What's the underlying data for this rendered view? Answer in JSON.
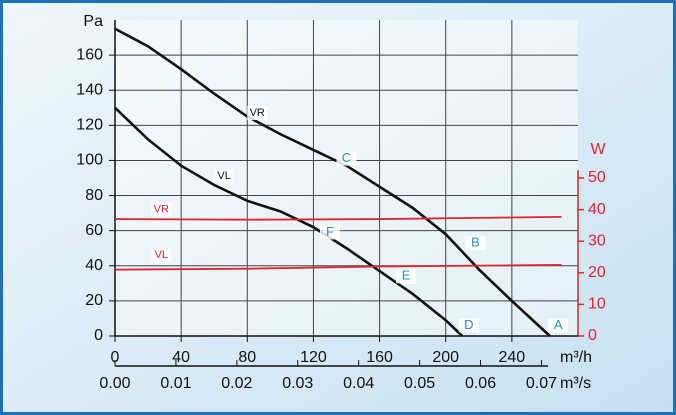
{
  "chart_data": {
    "type": "line",
    "x_label": "m³/h",
    "y_label": "Pa",
    "y2_label": "W",
    "x2_label": "m³/s",
    "xlim": [
      0,
      280
    ],
    "xticks": [
      0,
      40,
      80,
      120,
      160,
      200,
      240
    ],
    "ylim": [
      0,
      180
    ],
    "yticks": [
      0,
      20,
      40,
      60,
      80,
      100,
      120,
      140,
      160
    ],
    "y2lim": [
      0,
      100
    ],
    "y2ticks": [
      0,
      10,
      20,
      30,
      40,
      50
    ],
    "y2color": "#e0262b",
    "x2lim": [
      0,
      0.076
    ],
    "x2ticks": [
      {
        "value": 0,
        "label": "0.00"
      },
      {
        "value": 0.01,
        "label": "0.01"
      },
      {
        "value": 0.02,
        "label": "0.02"
      },
      {
        "value": 0.03,
        "label": "0.03"
      },
      {
        "value": 0.04,
        "label": "0.04"
      },
      {
        "value": 0.05,
        "label": "0.05"
      },
      {
        "value": 0.06,
        "label": "0.06"
      },
      {
        "value": 0.07,
        "label": "0.07"
      }
    ],
    "grid": true,
    "series": [
      {
        "color": "#111111",
        "x": [
          0,
          20,
          40,
          60,
          80,
          100,
          120,
          140,
          160,
          180,
          200,
          220,
          240,
          263
        ],
        "values": [
          175,
          165,
          152,
          138,
          125,
          115,
          106,
          97,
          85,
          73,
          58,
          38,
          20,
          0
        ]
      },
      {
        "color": "#111111",
        "x": [
          0,
          20,
          40,
          60,
          80,
          100,
          120,
          140,
          160,
          180,
          200,
          210
        ],
        "values": [
          130,
          112,
          97,
          86,
          77,
          71,
          62,
          50,
          37,
          24,
          9,
          0
        ]
      },
      {
        "color": "#e0262b",
        "axis": "y2",
        "x": [
          0,
          80,
          160,
          270
        ],
        "values": [
          37,
          36.8,
          37,
          37.7
        ]
      },
      {
        "color": "#e0262b",
        "axis": "y2",
        "x": [
          0,
          80,
          160,
          270
        ],
        "values": [
          21,
          21.3,
          22,
          22.5
        ]
      }
    ],
    "annotations": [
      {
        "text": "VR",
        "x": 86,
        "y": 127,
        "color": "#111111"
      },
      {
        "text": "VL",
        "x": 66,
        "y": 91,
        "color": "#111111"
      },
      {
        "text": "C",
        "x": 140,
        "y": 101,
        "color": "#2a8fc0"
      },
      {
        "text": "F",
        "x": 130,
        "y": 59,
        "color": "#2a8fc0"
      },
      {
        "text": "B",
        "x": 218,
        "y": 53,
        "color": "#2a8fc0"
      },
      {
        "text": "E",
        "x": 176,
        "y": 34,
        "color": "#2a8fc0"
      },
      {
        "text": "D",
        "x": 214,
        "y": 6,
        "color": "#2a8fc0"
      },
      {
        "text": "A",
        "x": 268,
        "y": 6,
        "color": "#2a8fc0"
      },
      {
        "text": "VR",
        "x": 28,
        "y": 72,
        "color": "#e0262b"
      },
      {
        "text": "VL",
        "x": 28,
        "y": 46,
        "color": "#e0262b"
      }
    ]
  }
}
